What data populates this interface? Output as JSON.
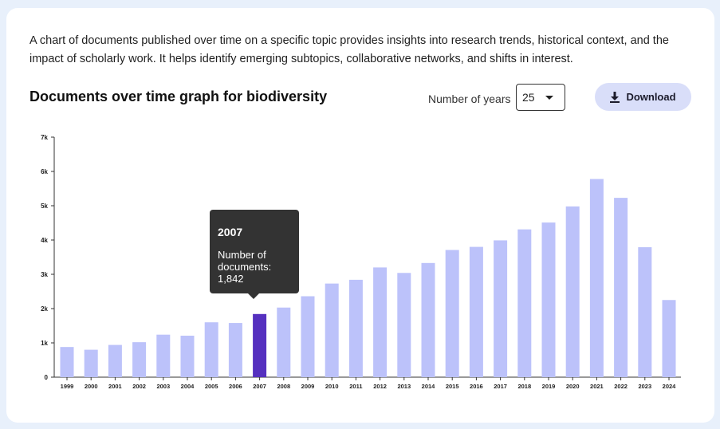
{
  "intro": "A chart of documents published over time on a specific topic provides insights into research trends, historical context, and the impact of scholarly work. It helps identify emerging subtopics, collaborative networks, and shifts in interest.",
  "header": {
    "title": "Documents over time graph for biodiversity",
    "years_label": "Number of years",
    "years_value": "25",
    "download_label": "Download"
  },
  "tooltip": {
    "year": "2007",
    "label": "Number of documents:",
    "value": "1,842"
  },
  "colors": {
    "bar": "#bcc2fa",
    "bar_highlight": "#5530bf",
    "axis": "#333333",
    "tooltip_bg": "#333333",
    "download_bg": "#d9def9",
    "page_bg": "#e8f0fb"
  },
  "icons": {
    "download": "download-icon",
    "dropdown": "caret-down-icon"
  },
  "chart_data": {
    "type": "bar",
    "title": "Documents over time graph for biodiversity",
    "xlabel": "",
    "ylabel": "",
    "ylim": [
      0,
      7000
    ],
    "yticks": [
      0,
      1000,
      2000,
      3000,
      4000,
      5000,
      6000,
      7000
    ],
    "ytick_labels": [
      "0",
      "1k",
      "2k",
      "3k",
      "4k",
      "5k",
      "6k",
      "7k"
    ],
    "categories": [
      "1999",
      "2000",
      "2001",
      "2002",
      "2003",
      "2004",
      "2005",
      "2006",
      "2007",
      "2008",
      "2009",
      "2010",
      "2011",
      "2012",
      "2013",
      "2014",
      "2015",
      "2016",
      "2017",
      "2018",
      "2019",
      "2020",
      "2021",
      "2022",
      "2023",
      "2024"
    ],
    "values": [
      880,
      800,
      940,
      1020,
      1240,
      1210,
      1600,
      1580,
      1842,
      2030,
      2360,
      2730,
      2840,
      3200,
      3040,
      3330,
      3710,
      3800,
      3990,
      4310,
      4510,
      4980,
      5780,
      5230,
      3790,
      2250
    ],
    "highlight": "2007",
    "grid": false
  }
}
